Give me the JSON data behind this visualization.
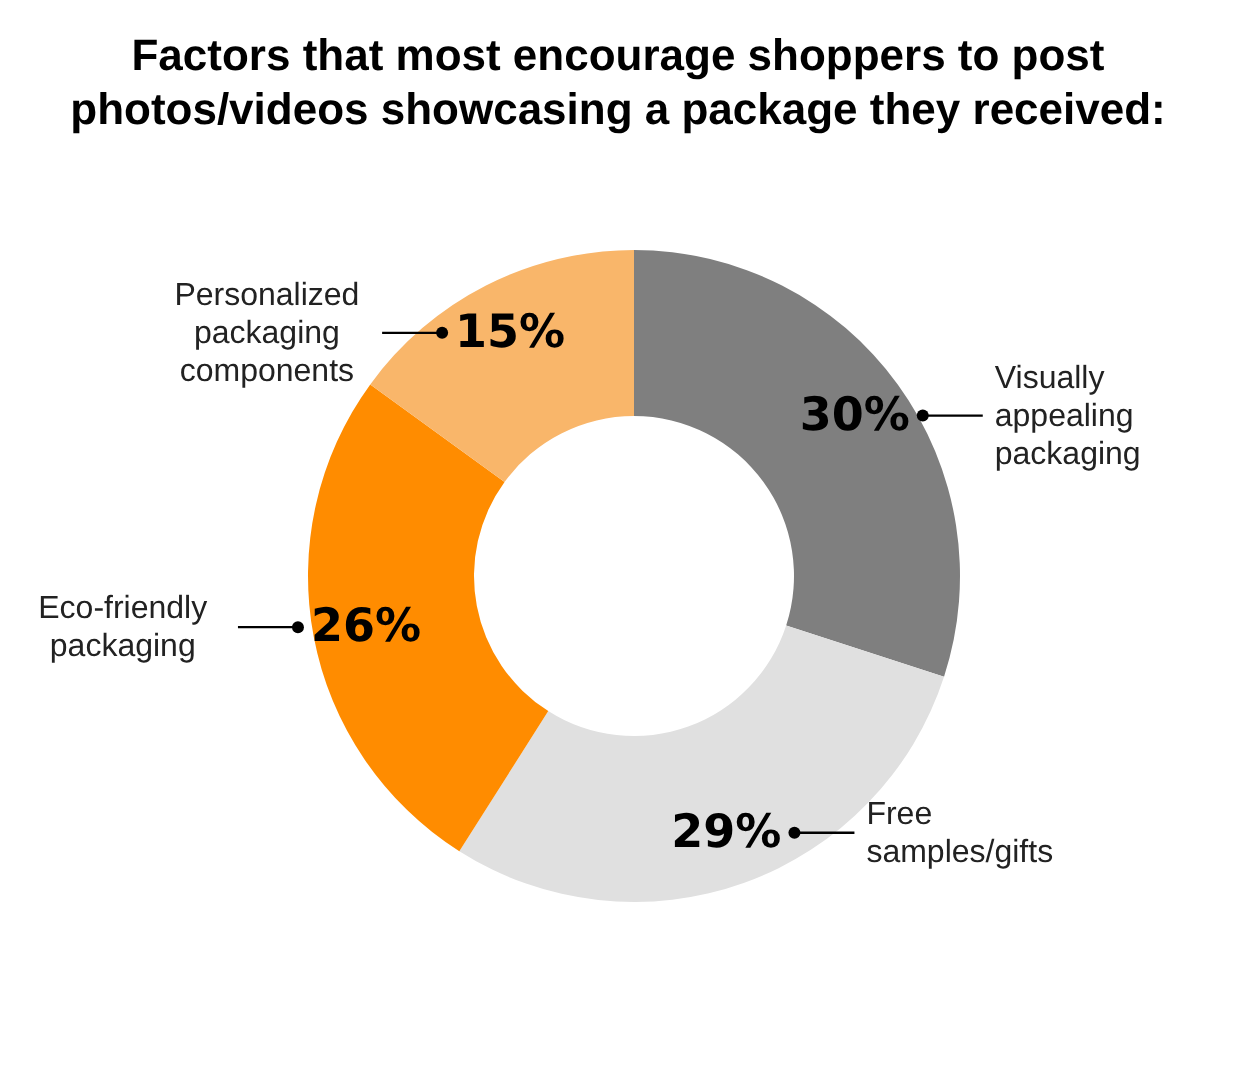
{
  "chart_data": {
    "type": "donut",
    "title": "Factors that most encourage shoppers to post photos/videos showcasing a package they received:",
    "categories": [
      "Visually appealing packaging",
      "Free samples/gifts",
      "Eco-friendly packaging",
      "Personalized packaging components"
    ],
    "values": [
      30,
      29,
      26,
      15
    ],
    "value_labels": [
      "30%",
      "29%",
      "26%",
      "15%"
    ],
    "colors": [
      "#7f7f7f",
      "#e0e0e0",
      "#ff8c00",
      "#f9b66a"
    ],
    "legend": false
  }
}
